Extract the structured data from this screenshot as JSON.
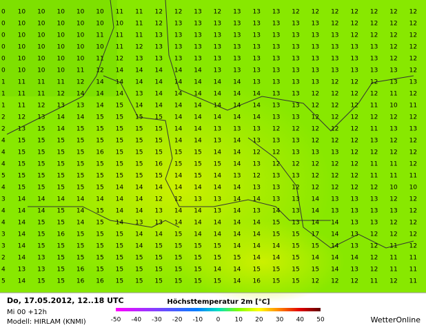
{
  "map": {
    "grid": [
      [
        0,
        10,
        10,
        10,
        10,
        10,
        11,
        11,
        12,
        12,
        13,
        12,
        13,
        13,
        13,
        12,
        12,
        12,
        12,
        12,
        12,
        12
      ],
      [
        0,
        10,
        10,
        10,
        10,
        10,
        10,
        11,
        12,
        13,
        13,
        13,
        13,
        13,
        13,
        13,
        13,
        12,
        12,
        12,
        12,
        12
      ],
      [
        0,
        10,
        10,
        10,
        10,
        11,
        11,
        11,
        13,
        13,
        13,
        13,
        13,
        13,
        13,
        13,
        13,
        13,
        12,
        12,
        12,
        12
      ],
      [
        0,
        10,
        10,
        10,
        10,
        10,
        11,
        12,
        13,
        13,
        13,
        13,
        13,
        13,
        13,
        13,
        13,
        13,
        13,
        13,
        12,
        12
      ],
      [
        0,
        10,
        10,
        10,
        10,
        11,
        12,
        13,
        13,
        13,
        13,
        13,
        13,
        13,
        13,
        13,
        13,
        13,
        13,
        13,
        12,
        12
      ],
      [
        0,
        10,
        10,
        10,
        11,
        12,
        14,
        14,
        14,
        14,
        14,
        13,
        13,
        13,
        13,
        13,
        13,
        13,
        13,
        13,
        13,
        12
      ],
      [
        1,
        11,
        11,
        11,
        12,
        14,
        14,
        14,
        14,
        14,
        14,
        14,
        14,
        13,
        13,
        13,
        13,
        12,
        12,
        12,
        13,
        13
      ],
      [
        1,
        11,
        11,
        12,
        14,
        14,
        14,
        13,
        14,
        14,
        14,
        14,
        14,
        14,
        13,
        13,
        12,
        12,
        12,
        12,
        11,
        12
      ],
      [
        1,
        11,
        12,
        13,
        13,
        14,
        15,
        14,
        14,
        14,
        14,
        14,
        14,
        14,
        13,
        13,
        12,
        12,
        12,
        11,
        10,
        11
      ],
      [
        2,
        12,
        13,
        14,
        14,
        15,
        15,
        15,
        15,
        14,
        14,
        14,
        14,
        14,
        13,
        13,
        12,
        12,
        12,
        12,
        12,
        12
      ],
      [
        2,
        13,
        15,
        14,
        15,
        15,
        15,
        15,
        15,
        14,
        14,
        13,
        13,
        13,
        12,
        12,
        12,
        12,
        12,
        11,
        13,
        13
      ],
      [
        4,
        15,
        15,
        15,
        15,
        15,
        15,
        15,
        15,
        14,
        14,
        13,
        14,
        13,
        13,
        13,
        12,
        12,
        12,
        13,
        12,
        12
      ],
      [
        4,
        15,
        15,
        15,
        15,
        16,
        15,
        15,
        15,
        15,
        15,
        14,
        14,
        12,
        12,
        13,
        13,
        13,
        12,
        12,
        12,
        12
      ],
      [
        4,
        15,
        15,
        15,
        15,
        15,
        15,
        15,
        16,
        15,
        15,
        15,
        14,
        13,
        12,
        12,
        12,
        12,
        12,
        11,
        11,
        12
      ],
      [
        5,
        15,
        15,
        15,
        15,
        15,
        15,
        15,
        15,
        14,
        15,
        14,
        13,
        12,
        13,
        13,
        12,
        12,
        12,
        11,
        11,
        11
      ],
      [
        4,
        15,
        15,
        15,
        15,
        15,
        14,
        14,
        14,
        14,
        14,
        14,
        14,
        13,
        13,
        12,
        12,
        12,
        12,
        12,
        10,
        10
      ],
      [
        3,
        14,
        14,
        14,
        14,
        14,
        14,
        14,
        12,
        12,
        13,
        13,
        14,
        14,
        13,
        13,
        14,
        13,
        13,
        13,
        12,
        12
      ],
      [
        4,
        14,
        14,
        15,
        14,
        15,
        14,
        14,
        13,
        14,
        14,
        13,
        14,
        13,
        14,
        13,
        14,
        13,
        13,
        13,
        13,
        12
      ],
      [
        4,
        14,
        15,
        15,
        14,
        15,
        14,
        13,
        13,
        14,
        14,
        14,
        14,
        14,
        15,
        13,
        14,
        14,
        13,
        13,
        12,
        12
      ],
      [
        3,
        14,
        15,
        16,
        15,
        15,
        15,
        14,
        14,
        15,
        14,
        14,
        14,
        14,
        15,
        15,
        17,
        14,
        13,
        12,
        12,
        12
      ],
      [
        3,
        14,
        15,
        15,
        15,
        15,
        15,
        14,
        15,
        15,
        15,
        15,
        14,
        14,
        14,
        15,
        15,
        14,
        13,
        12,
        11,
        12
      ],
      [
        2,
        14,
        13,
        15,
        15,
        15,
        15,
        15,
        15,
        15,
        15,
        15,
        15,
        14,
        14,
        15,
        14,
        14,
        14,
        12,
        11,
        11
      ],
      [
        4,
        13,
        13,
        15,
        16,
        15,
        15,
        15,
        15,
        15,
        15,
        14,
        14,
        15,
        15,
        15,
        15,
        14,
        13,
        12,
        11,
        11
      ],
      [
        5,
        14,
        15,
        15,
        16,
        16,
        15,
        15,
        15,
        15,
        15,
        15,
        14,
        16,
        15,
        15,
        12,
        12,
        12,
        11,
        12,
        11
      ]
    ]
  },
  "footer": {
    "date": "Do, 17.05.2012, 12..18 UTC",
    "run": "Mi 00 +12h",
    "model": "Modell: HIRLAM (KNMI)",
    "legend_title": "Höchsttemperatur 2m [°C]",
    "legend_ticks": [
      -50,
      -40,
      -30,
      -20,
      -10,
      0,
      10,
      20,
      30,
      40,
      50
    ],
    "brand": "WetterOnline"
  }
}
